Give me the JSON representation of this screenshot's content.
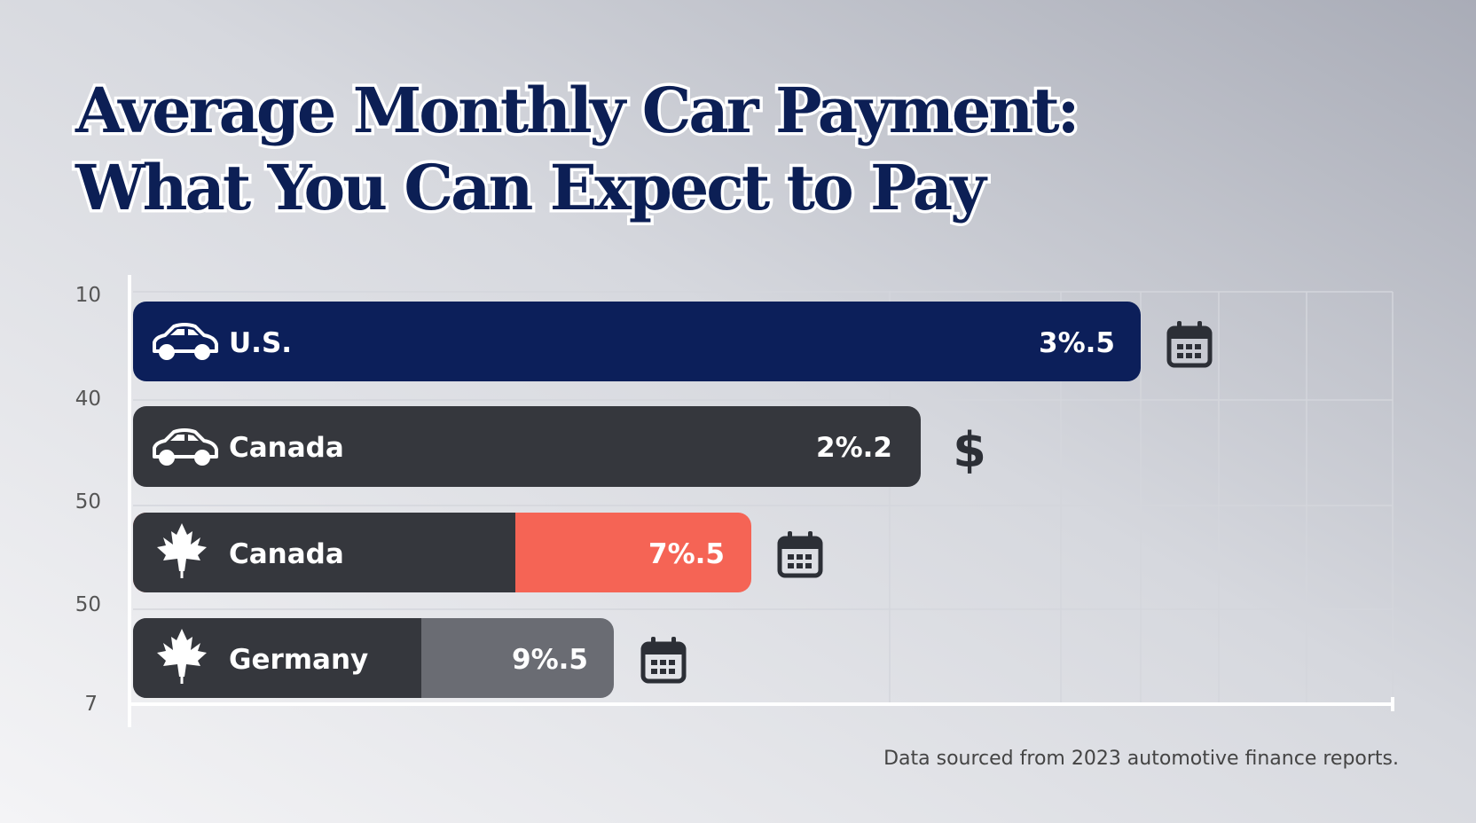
{
  "title": [
    "Average Monthly Car Payment:",
    "What You Can Expect to Pay"
  ],
  "axis_labels": [
    "10",
    "40",
    "50",
    "50",
    "7"
  ],
  "bars": [
    {
      "label": "U.S.",
      "value_label": "3%.5"
    },
    {
      "label": "Canada",
      "value_label": "2%.2",
      "icon": "$"
    },
    {
      "label": "Canada",
      "value_label": "7%.5"
    },
    {
      "label": "Germany",
      "value_label": "9%.5"
    }
  ],
  "footnote": "Data sourced from 2023 automotive finance reports."
}
